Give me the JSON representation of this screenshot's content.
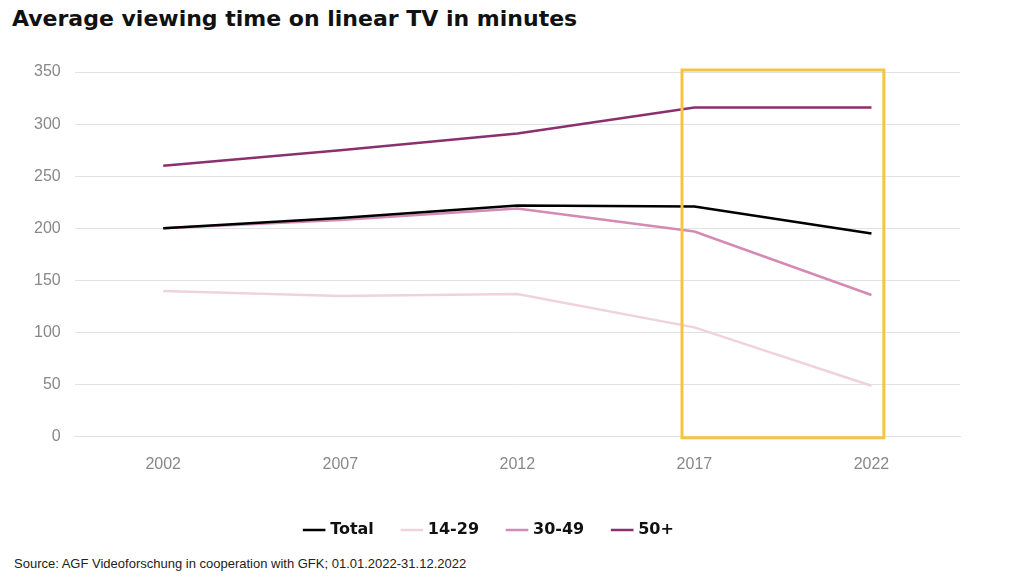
{
  "chart_data": {
    "type": "line",
    "title": "Average viewing time on linear TV in minutes",
    "source": "Source: AGF Videoforschung in cooperation with GFK; 01.01.2022-31.12.2022",
    "categories": [
      "2002",
      "2007",
      "2012",
      "2017",
      "2022"
    ],
    "series": [
      {
        "name": "Total",
        "color": "#000000",
        "values": [
          200,
          210,
          222,
          221,
          195
        ]
      },
      {
        "name": "14-29",
        "color": "#f0d2dd",
        "values": [
          140,
          135,
          137,
          105,
          49
        ]
      },
      {
        "name": "30-49",
        "color": "#d48ab3",
        "values": [
          200,
          208,
          219,
          197,
          136
        ]
      },
      {
        "name": "50+",
        "color": "#8c2f6e",
        "values": [
          260,
          275,
          291,
          316,
          316
        ]
      }
    ],
    "ylim": [
      0,
      350
    ],
    "yticks": [
      0,
      50,
      100,
      150,
      200,
      250,
      300,
      350
    ],
    "grid": true,
    "legend": "bottom"
  }
}
